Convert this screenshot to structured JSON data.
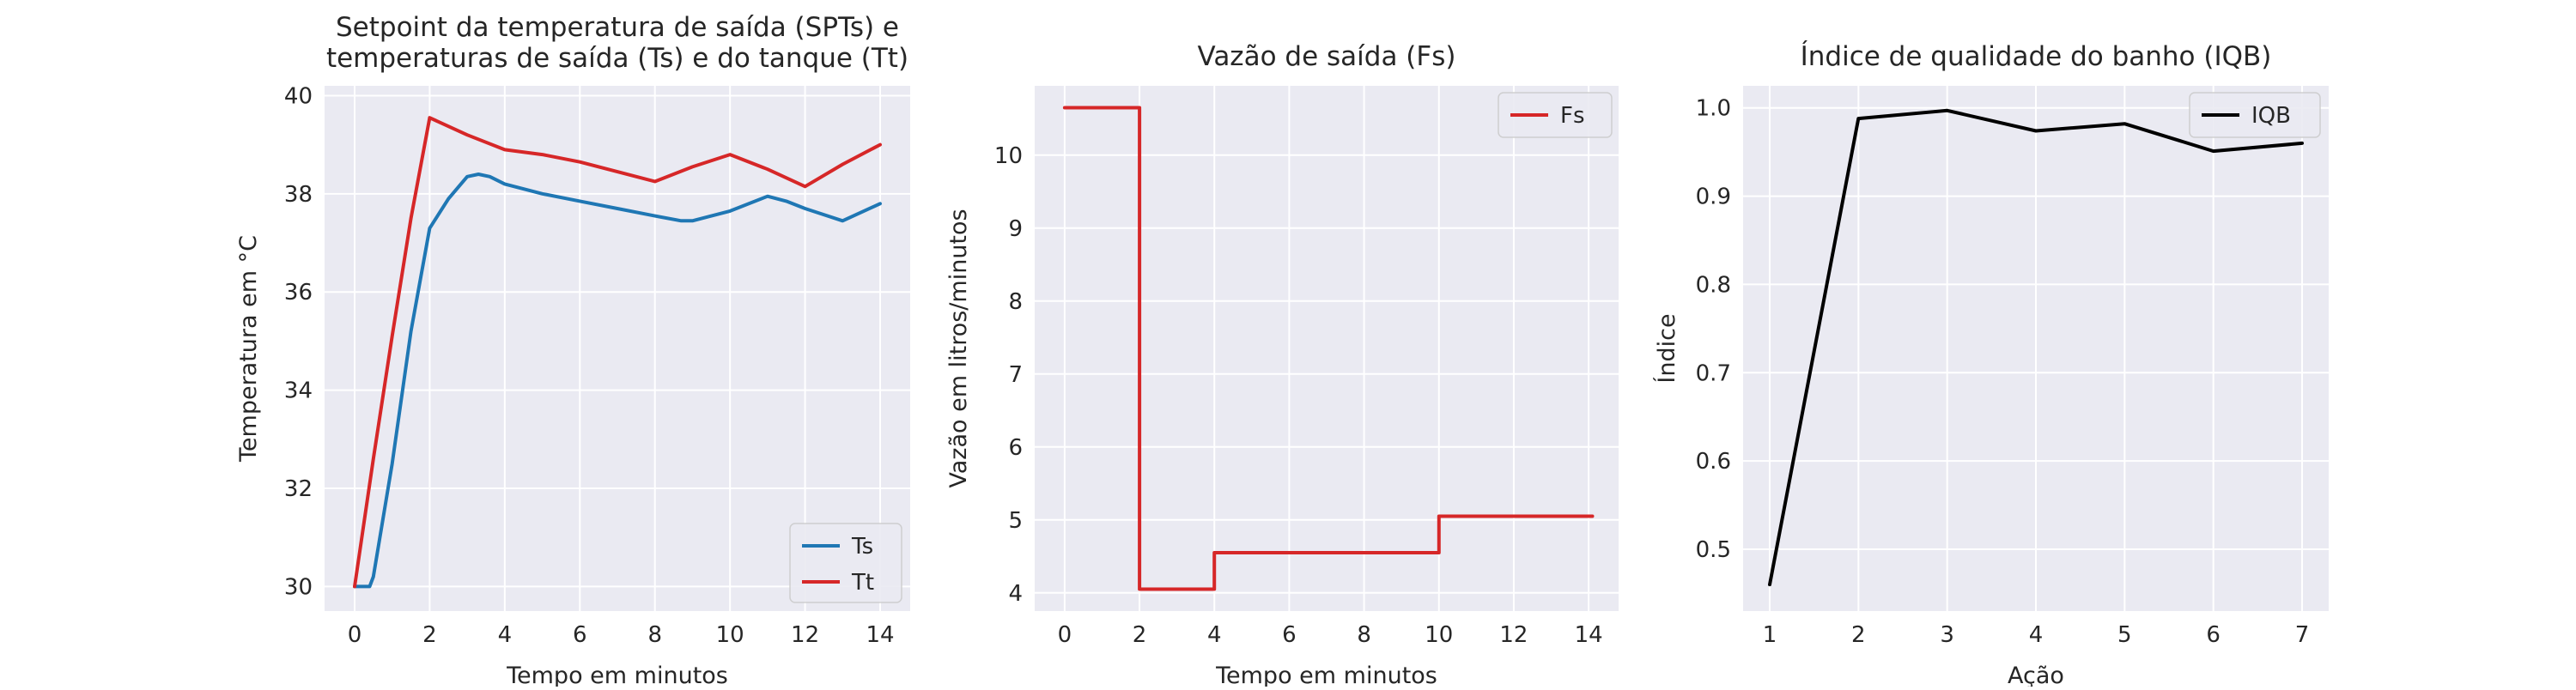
{
  "colors": {
    "background": "#eaeaf2",
    "grid": "#ffffff",
    "blue": "#1f77b4",
    "red": "#d62728",
    "black": "#000000"
  },
  "chart_data": [
    {
      "type": "line",
      "title": "Setpoint da temperatura de saída (SPTs) e\ntemperaturas de saída (Ts) e do tanque (Tt)",
      "xlabel": "Tempo em minutos",
      "ylabel": "Temperatura em °C",
      "xlim": [
        -0.8,
        14.8
      ],
      "ylim": [
        29.5,
        40.2
      ],
      "xticks": [
        0,
        2,
        4,
        6,
        8,
        10,
        12,
        14
      ],
      "yticks": [
        30,
        32,
        34,
        36,
        38,
        40
      ],
      "legend_position": "lower-right",
      "series": [
        {
          "name": "Ts",
          "color": "#1f77b4",
          "x": [
            0,
            0.4,
            0.5,
            1.0,
            1.5,
            2.0,
            2.5,
            3.0,
            3.3,
            3.6,
            4.0,
            5.0,
            6.0,
            7.0,
            8.0,
            8.7,
            9.0,
            10.0,
            11.0,
            11.5,
            12.0,
            13.0,
            14.0
          ],
          "y": [
            30.0,
            30.0,
            30.2,
            32.5,
            35.2,
            37.3,
            37.9,
            38.35,
            38.4,
            38.35,
            38.2,
            38.0,
            37.85,
            37.7,
            37.55,
            37.45,
            37.45,
            37.65,
            37.95,
            37.85,
            37.7,
            37.45,
            37.8
          ]
        },
        {
          "name": "Tt",
          "color": "#d62728",
          "x": [
            0,
            0.5,
            1.0,
            1.5,
            2.0,
            3.0,
            4.0,
            5.0,
            6.0,
            7.0,
            8.0,
            9.0,
            10.0,
            11.0,
            12.0,
            13.0,
            14.0
          ],
          "y": [
            30.0,
            32.6,
            35.1,
            37.5,
            39.55,
            39.2,
            38.9,
            38.8,
            38.65,
            38.45,
            38.25,
            38.55,
            38.8,
            38.5,
            38.15,
            38.6,
            39.0
          ]
        }
      ]
    },
    {
      "type": "line",
      "title": "Vazão de saída (Fs)",
      "xlabel": "Tempo em minutos",
      "ylabel": "Vazão em litros/minutos",
      "xlim": [
        -0.8,
        14.8
      ],
      "ylim": [
        3.75,
        10.95
      ],
      "xticks": [
        0,
        2,
        4,
        6,
        8,
        10,
        12,
        14
      ],
      "yticks": [
        4,
        5,
        6,
        7,
        8,
        9,
        10
      ],
      "legend_position": "top-right",
      "series": [
        {
          "name": "Fs",
          "color": "#d62728",
          "x": [
            0,
            2,
            2,
            4,
            4,
            10,
            10,
            14.1
          ],
          "y": [
            10.65,
            10.65,
            4.05,
            4.05,
            4.55,
            4.55,
            5.05,
            5.05
          ]
        }
      ]
    },
    {
      "type": "line",
      "title": "Índice de qualidade do banho (IQB)",
      "xlabel": "Ação",
      "ylabel": "Índice",
      "xlim": [
        0.7,
        7.3
      ],
      "ylim": [
        0.43,
        1.025
      ],
      "xticks": [
        1,
        2,
        3,
        4,
        5,
        6,
        7
      ],
      "yticks": [
        0.5,
        0.6,
        0.7,
        0.8,
        0.9,
        1.0
      ],
      "tick_decimals": 1,
      "legend_position": "top-right",
      "series": [
        {
          "name": "IQB",
          "color": "#000000",
          "x": [
            1,
            2,
            3,
            4,
            5,
            6,
            7
          ],
          "y": [
            0.46,
            0.988,
            0.997,
            0.974,
            0.982,
            0.951,
            0.96
          ]
        }
      ]
    }
  ]
}
